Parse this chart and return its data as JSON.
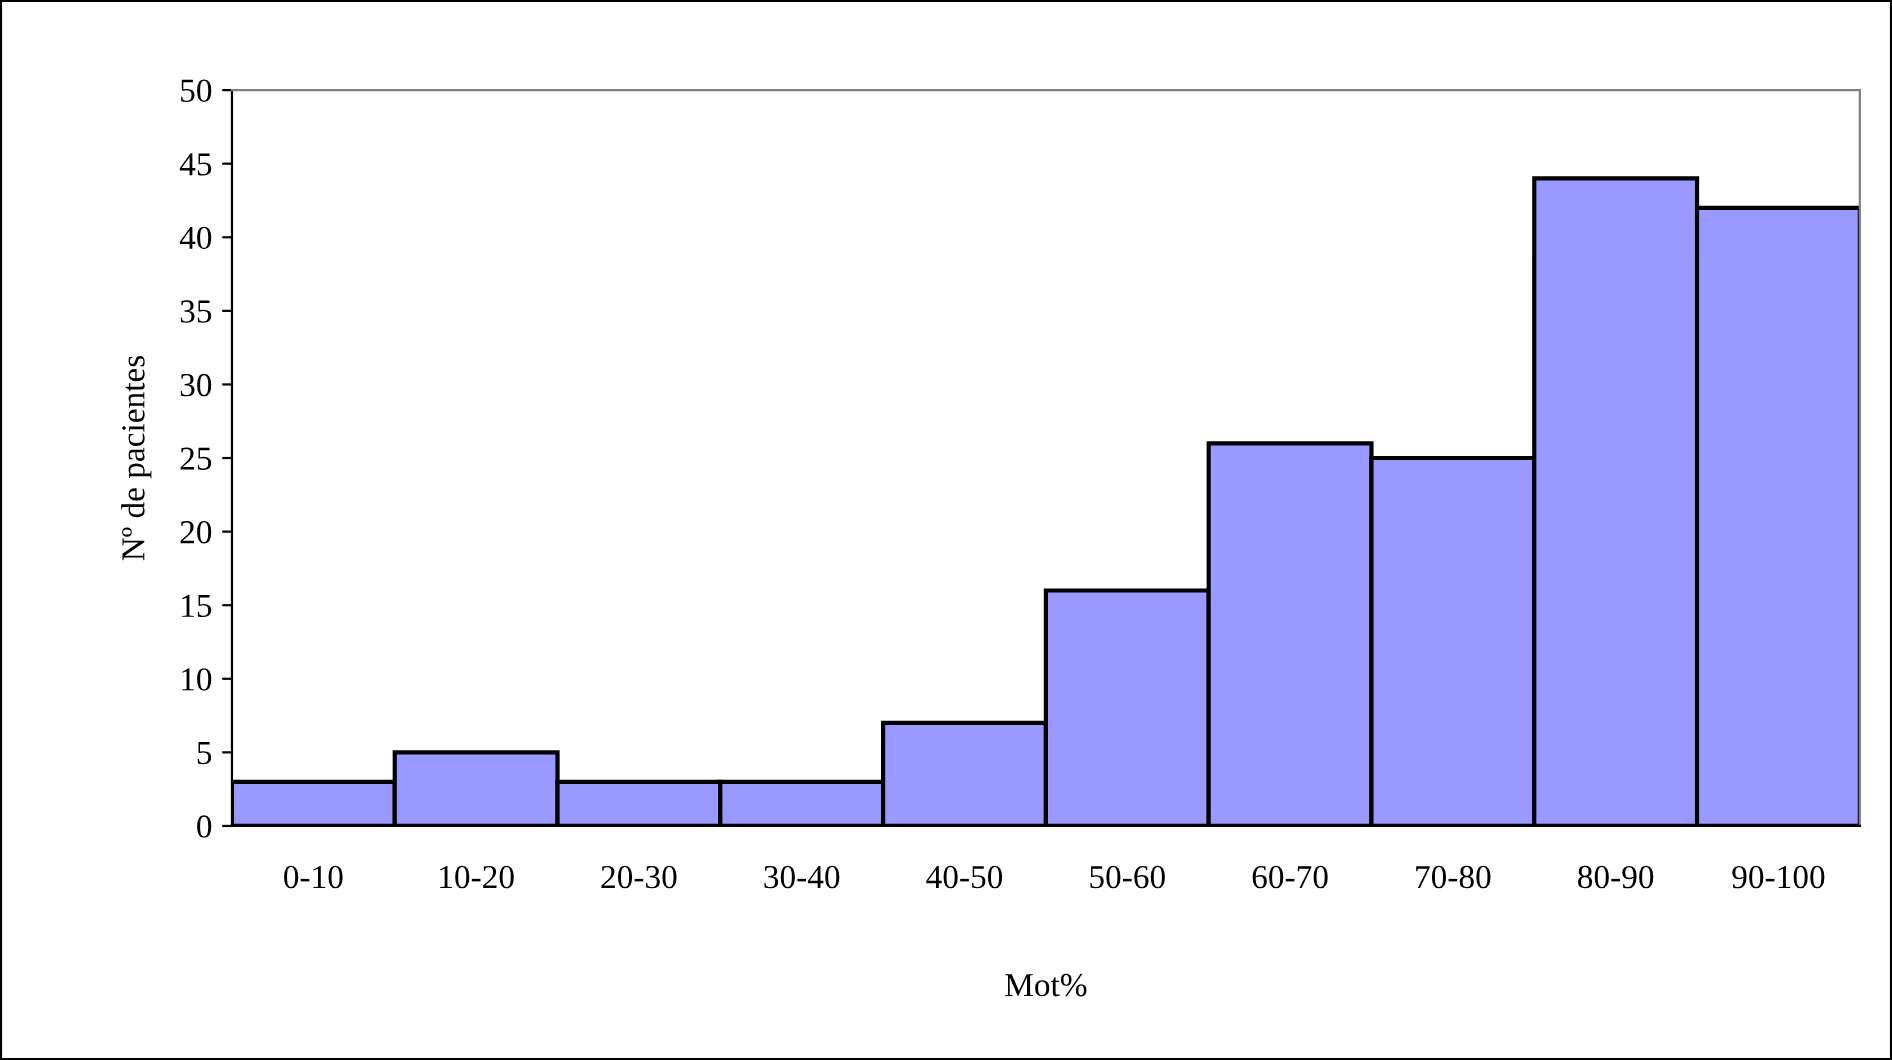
{
  "chart_data": {
    "type": "bar",
    "xlabel": "Mot%",
    "ylabel": "Nº de pacientes",
    "categories": [
      "0-10",
      "10-20",
      "20-30",
      "30-40",
      "40-50",
      "50-60",
      "60-70",
      "70-80",
      "80-90",
      "90-100"
    ],
    "values": [
      3,
      5,
      3,
      3,
      7,
      16,
      26,
      25,
      44,
      42
    ],
    "color": "#9999ff",
    "ylim": [
      0,
      50
    ],
    "yticks": [
      0,
      5,
      10,
      15,
      20,
      25,
      30,
      35,
      40,
      45,
      50
    ],
    "grid": false,
    "legend": false
  }
}
